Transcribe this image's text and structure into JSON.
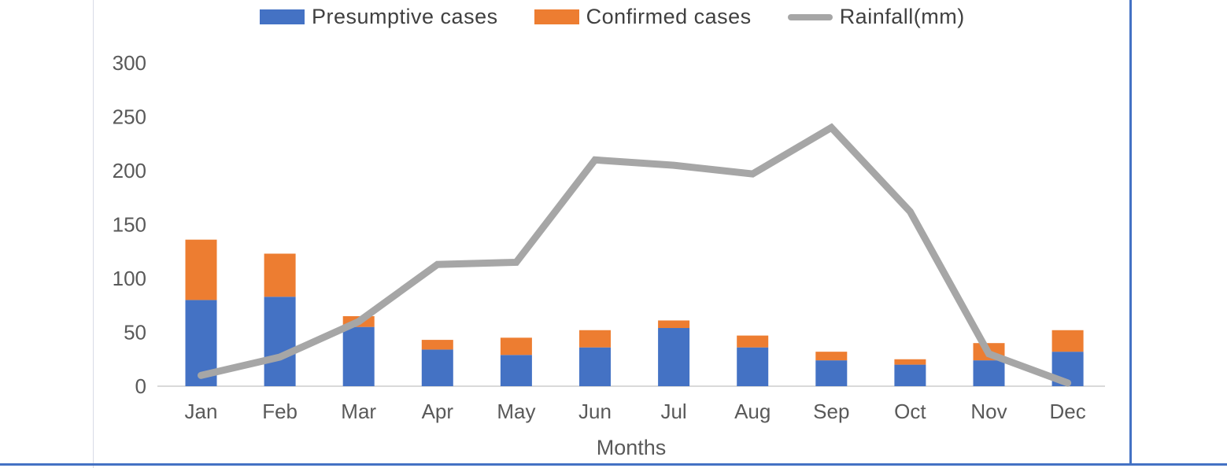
{
  "chart_data": {
    "type": "bar",
    "subtype": "stacked-bars-with-line-overlay",
    "title": "",
    "xlabel": "Months",
    "ylabel": "",
    "ylim": [
      0,
      300
    ],
    "yticks": [
      0,
      50,
      100,
      150,
      200,
      250,
      300
    ],
    "grid": "off",
    "legend_position": "top",
    "categories": [
      "Jan",
      "Feb",
      "Mar",
      "Apr",
      "May",
      "Jun",
      "Jul",
      "Aug",
      "Sep",
      "Oct",
      "Nov",
      "Dec"
    ],
    "series": [
      {
        "name": "Presumptive cases",
        "type": "bar-stack-bottom",
        "color": "#4472C4",
        "values": [
          80,
          83,
          55,
          34,
          29,
          36,
          54,
          36,
          24,
          20,
          24,
          32
        ]
      },
      {
        "name": "Confirmed cases",
        "type": "bar-stack-top",
        "color": "#ED7D31",
        "values": [
          56,
          40,
          10,
          9,
          16,
          16,
          7,
          11,
          8,
          5,
          16,
          20
        ]
      },
      {
        "name": "Rainfall(mm)",
        "type": "line",
        "color": "#A6A6A6",
        "values": [
          10,
          27,
          60,
          113,
          115,
          210,
          205,
          197,
          240,
          162,
          30,
          3
        ]
      }
    ],
    "colors": {
      "axis_text": "#595959",
      "axis_line": "#D9D9D9",
      "page_border_accent": "#4472C4"
    }
  }
}
